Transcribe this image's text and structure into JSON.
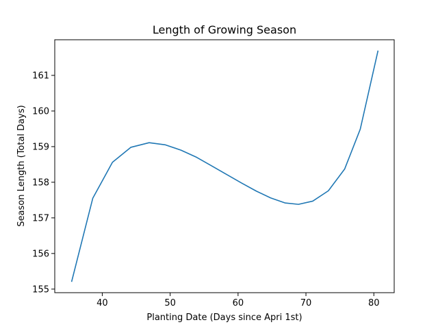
{
  "chart_data": {
    "type": "line",
    "title": "Length of Growing Season",
    "xlabel": "Planting Date (Days since Apri 1st)",
    "ylabel": "Season Length (Total Days)",
    "xlim": [
      33.0,
      83.0
    ],
    "ylim": [
      154.9,
      162.0
    ],
    "xticks": [
      40,
      50,
      60,
      70,
      80
    ],
    "yticks": [
      155,
      156,
      157,
      158,
      159,
      160,
      161
    ],
    "grid": false,
    "series": [
      {
        "color": "#1f77b4",
        "x": [
          35.5,
          38.6,
          41.5,
          44.2,
          46.9,
          49.3,
          51.6,
          53.9,
          56.1,
          58.3,
          60.5,
          62.7,
          64.8,
          66.9,
          68.9,
          71.0,
          73.3,
          75.7,
          78.0,
          80.6
        ],
        "y": [
          155.22,
          157.55,
          158.56,
          158.98,
          159.11,
          159.05,
          158.9,
          158.7,
          158.46,
          158.22,
          157.98,
          157.75,
          157.56,
          157.42,
          157.38,
          157.47,
          157.76,
          158.37,
          159.49,
          161.68
        ]
      }
    ]
  }
}
